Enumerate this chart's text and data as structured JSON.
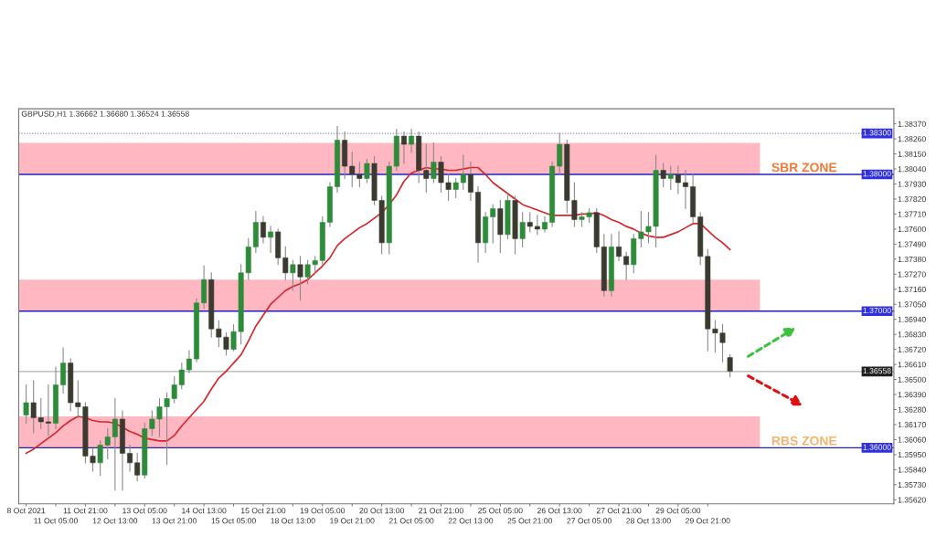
{
  "chart_data": {
    "type": "candlestick",
    "title": "GBPUSD,H1 1.36662 1.36680 1.36524 1.36558",
    "categories": [
      "8 Oct 2021",
      null,
      null,
      null,
      "11 Oct 05:00",
      null,
      null,
      null,
      "11 Oct 21:00",
      null,
      null,
      null,
      "12 Oct 13:00",
      null,
      null,
      null,
      "13 Oct 05:00",
      null,
      null,
      null,
      "13 Oct 21:00",
      null,
      null,
      null,
      "14 Oct 13:00",
      null,
      null,
      null,
      "15 Oct 05:00",
      null,
      null,
      null,
      "15 Oct 21:00",
      null,
      null,
      null,
      "18 Oct 13:00",
      null,
      null,
      null,
      "19 Oct 05:00",
      null,
      null,
      null,
      "19 Oct 21:00",
      null,
      null,
      null,
      "20 Oct 13:00",
      null,
      null,
      null,
      "21 Oct 05:00",
      null,
      null,
      null,
      "21 Oct 21:00",
      null,
      null,
      null,
      "22 Oct 13:00",
      null,
      null,
      null,
      "25 Oct 05:00",
      null,
      null,
      null,
      "25 Oct 21:00",
      null,
      null,
      null,
      "26 Oct 13:00",
      null,
      null,
      null,
      "27 Oct 05:00",
      null,
      null,
      null,
      "27 Oct 21:00",
      null,
      null,
      null,
      "28 Oct 13:00",
      null,
      null,
      null,
      "29 Oct 05:00",
      null,
      null,
      null,
      "29 Oct 21:00",
      null,
      null,
      null
    ],
    "series": [
      {
        "type": "candlestick",
        "colors": [
          "#2e8b3a",
          "#3a3a30",
          "#3a3a30",
          "#3a3a30",
          "#2e8b3a",
          "#2e8b3a",
          "#3a3a30",
          "#3a3a30",
          "#3a3a30",
          "#3a3a30",
          "#2e8b3a",
          "#2e8b3a",
          "#2e8b3a",
          "#3a3a30",
          "#3a3a30",
          "#3a3a30",
          "#2e8b3a",
          "#2e8b3a",
          "#2e8b3a",
          "#2e8b3a",
          "#2e8b3a",
          "#2e8b3a",
          "#2e8b3a",
          "#2e8b3a",
          "#2e8b3a",
          "#3a3a30",
          "#3a3a30",
          "#3a3a30",
          "#2e8b3a",
          "#2e8b3a",
          "#2e8b3a",
          "#2e8b3a",
          "#3a3a30",
          "#2e8b3a",
          "#3a3a30",
          "#3a3a30",
          "#2e8b3a",
          "#3a3a30",
          "#2e8b3a",
          "#2e8b3a",
          "#2e8b3a",
          "#2e8b3a",
          "#2e8b3a",
          "#3a3a30",
          "#3a3a30",
          "#3a3a30",
          "#2e8b3a",
          "#3a3a30",
          "#3a3a30",
          "#2e8b3a",
          "#2e8b3a",
          "#3a3a30",
          "#2e8b3a",
          "#3a3a30",
          "#3a3a30",
          "#2e8b3a",
          "#3a3a30",
          "#3a3a30",
          "#2e8b3a",
          "#2e8b3a",
          "#3a3a30",
          "#3a3a30",
          "#2e8b3a",
          "#2e8b3a",
          "#3a3a30",
          "#2e8b3a",
          "#3a3a30",
          "#2e8b3a",
          "#3a3a30",
          "#3a3a30",
          "#2e8b3a",
          "#2e8b3a",
          "#2e8b3a",
          "#3a3a30",
          "#3a3a30",
          "#2e8b3a",
          "#2e8b3a",
          "#3a3a30",
          "#3a3a30",
          "#2e8b3a",
          "#3a3a30",
          "#3a3a30",
          "#2e8b3a",
          "#2e8b3a",
          "#2e8b3a",
          "#2e8b3a",
          "#3a3a30",
          "#2e8b3a",
          "#3a3a30",
          "#3a3a30",
          "#3a3a30",
          "#3a3a30",
          "#3a3a30",
          "#3a3a30",
          "#3a3a30",
          "#3a3a30"
        ],
        "ohlc": [
          [
            1.3624,
            1.3646,
            1.3618,
            1.3633
          ],
          [
            1.3633,
            1.3649,
            1.3611,
            1.3622
          ],
          [
            1.3622,
            1.3636,
            1.3614,
            1.3619
          ],
          [
            1.3619,
            1.3646,
            1.3609,
            1.3618
          ],
          [
            1.3618,
            1.3659,
            1.3614,
            1.3646
          ],
          [
            1.3646,
            1.3673,
            1.364,
            1.3662
          ],
          [
            1.3662,
            1.3665,
            1.3627,
            1.3633
          ],
          [
            1.3633,
            1.3649,
            1.3622,
            1.363
          ],
          [
            1.363,
            1.3633,
            1.3589,
            1.3594
          ],
          [
            1.3594,
            1.3599,
            1.3583,
            1.3589
          ],
          [
            1.3589,
            1.3605,
            1.358,
            1.3602
          ],
          [
            1.3602,
            1.3614,
            1.3592,
            1.3608
          ],
          [
            1.3608,
            1.3636,
            1.3569,
            1.3621
          ],
          [
            1.3621,
            1.3627,
            1.3569,
            1.3596
          ],
          [
            1.3596,
            1.3602,
            1.3583,
            1.3589
          ],
          [
            1.3589,
            1.3596,
            1.3576,
            1.358
          ],
          [
            1.358,
            1.3618,
            1.3578,
            1.3614
          ],
          [
            1.3614,
            1.3627,
            1.3609,
            1.3621
          ],
          [
            1.3621,
            1.3636,
            1.3608,
            1.363
          ],
          [
            1.363,
            1.364,
            1.3588,
            1.3636
          ],
          [
            1.3636,
            1.3652,
            1.3633,
            1.3646
          ],
          [
            1.3646,
            1.3662,
            1.3643,
            1.3657
          ],
          [
            1.3657,
            1.3671,
            1.3655,
            1.3665
          ],
          [
            1.3665,
            1.3709,
            1.3663,
            1.3706
          ],
          [
            1.3706,
            1.3733,
            1.3702,
            1.3723
          ],
          [
            1.3723,
            1.3728,
            1.3681,
            1.3687
          ],
          [
            1.3687,
            1.3693,
            1.3674,
            1.3681
          ],
          [
            1.3681,
            1.3684,
            1.3668,
            1.3672
          ],
          [
            1.3672,
            1.369,
            1.3671,
            1.3685
          ],
          [
            1.3685,
            1.3734,
            1.3676,
            1.3728
          ],
          [
            1.3728,
            1.3753,
            1.3723,
            1.3747
          ],
          [
            1.3747,
            1.3773,
            1.3743,
            1.3765
          ],
          [
            1.3765,
            1.3769,
            1.375,
            1.3754
          ],
          [
            1.3754,
            1.3762,
            1.3743,
            1.3758
          ],
          [
            1.3758,
            1.376,
            1.3734,
            1.3739
          ],
          [
            1.3739,
            1.3747,
            1.3723,
            1.3728
          ],
          [
            1.3728,
            1.3737,
            1.3715,
            1.3734
          ],
          [
            1.3734,
            1.374,
            1.3708,
            1.3725
          ],
          [
            1.3725,
            1.3737,
            1.372,
            1.3734
          ],
          [
            1.3734,
            1.374,
            1.3728,
            1.3737
          ],
          [
            1.3737,
            1.3769,
            1.3734,
            1.3765
          ],
          [
            1.3765,
            1.3794,
            1.3762,
            1.3791
          ],
          [
            1.3791,
            1.3835,
            1.3787,
            1.3825
          ],
          [
            1.3825,
            1.3831,
            1.3797,
            1.3806
          ],
          [
            1.3806,
            1.3816,
            1.3791,
            1.38
          ],
          [
            1.38,
            1.3809,
            1.3791,
            1.3797
          ],
          [
            1.3797,
            1.3811,
            1.3794,
            1.3808
          ],
          [
            1.3808,
            1.3813,
            1.3778,
            1.3781
          ],
          [
            1.3781,
            1.3784,
            1.3742,
            1.375
          ],
          [
            1.375,
            1.3809,
            1.3742,
            1.3806
          ],
          [
            1.3806,
            1.3833,
            1.3803,
            1.3828
          ],
          [
            1.3828,
            1.3831,
            1.3808,
            1.3822
          ],
          [
            1.3822,
            1.3833,
            1.3816,
            1.3828
          ],
          [
            1.3828,
            1.3831,
            1.3794,
            1.3803
          ],
          [
            1.3803,
            1.3822,
            1.3787,
            1.3797
          ],
          [
            1.3797,
            1.3823,
            1.3794,
            1.3809
          ],
          [
            1.3809,
            1.3813,
            1.3787,
            1.3794
          ],
          [
            1.3794,
            1.38,
            1.3781,
            1.3789
          ],
          [
            1.3789,
            1.3797,
            1.3783,
            1.3794
          ],
          [
            1.3794,
            1.3814,
            1.3789,
            1.38
          ],
          [
            1.38,
            1.3809,
            1.3781,
            1.3787
          ],
          [
            1.3787,
            1.3791,
            1.3736,
            1.375
          ],
          [
            1.375,
            1.3772,
            1.3743,
            1.3769
          ],
          [
            1.3769,
            1.3778,
            1.375,
            1.3775
          ],
          [
            1.3775,
            1.3781,
            1.3743,
            1.3756
          ],
          [
            1.3756,
            1.3786,
            1.3753,
            1.3781
          ],
          [
            1.3781,
            1.3784,
            1.3742,
            1.3753
          ],
          [
            1.3753,
            1.3772,
            1.3747,
            1.3765
          ],
          [
            1.3765,
            1.3772,
            1.3758,
            1.3762
          ],
          [
            1.3762,
            1.377,
            1.3756,
            1.376
          ],
          [
            1.376,
            1.3769,
            1.3758,
            1.3765
          ],
          [
            1.3765,
            1.3809,
            1.3762,
            1.3806
          ],
          [
            1.3806,
            1.383,
            1.38,
            1.3822
          ],
          [
            1.3822,
            1.3825,
            1.3772,
            1.3781
          ],
          [
            1.3781,
            1.3794,
            1.3762,
            1.3767
          ],
          [
            1.3767,
            1.3772,
            1.3762,
            1.3769
          ],
          [
            1.3769,
            1.3775,
            1.3765,
            1.3772
          ],
          [
            1.3772,
            1.3775,
            1.3743,
            1.3747
          ],
          [
            1.3747,
            1.3756,
            1.3711,
            1.3715
          ],
          [
            1.3715,
            1.3756,
            1.3711,
            1.3747
          ],
          [
            1.3747,
            1.3758,
            1.3737,
            1.374
          ],
          [
            1.374,
            1.3743,
            1.3723,
            1.3734
          ],
          [
            1.3734,
            1.3756,
            1.3728,
            1.3753
          ],
          [
            1.3753,
            1.3773,
            1.3747,
            1.3758
          ],
          [
            1.3758,
            1.3772,
            1.375,
            1.3762
          ],
          [
            1.3762,
            1.3814,
            1.3747,
            1.3803
          ],
          [
            1.3803,
            1.3808,
            1.3791,
            1.3797
          ],
          [
            1.3797,
            1.3806,
            1.3789,
            1.38
          ],
          [
            1.38,
            1.3806,
            1.3786,
            1.3794
          ],
          [
            1.3794,
            1.3803,
            1.3775,
            1.3791
          ],
          [
            1.3791,
            1.38,
            1.3765,
            1.3769
          ],
          [
            1.3769,
            1.3772,
            1.3734,
            1.374
          ],
          [
            1.374,
            1.3745,
            1.3671,
            1.3687
          ],
          [
            1.3687,
            1.3693,
            1.367,
            1.3684
          ],
          [
            1.3684,
            1.369,
            1.3663,
            1.3677
          ],
          [
            1.3666,
            1.3668,
            1.3652,
            1.3656
          ]
        ]
      },
      {
        "type": "line",
        "color": "#d7262b",
        "values": [
          1.3596,
          1.3599,
          1.3603,
          1.3607,
          1.3611,
          1.3616,
          1.362,
          1.3623,
          1.3622,
          1.362,
          1.3619,
          1.3619,
          1.3618,
          1.3615,
          1.3612,
          1.361,
          1.3607,
          1.3606,
          1.3605,
          1.3605,
          1.3609,
          1.3616,
          1.3622,
          1.3628,
          1.3634,
          1.3643,
          1.3651,
          1.3656,
          1.3662,
          1.3668,
          1.3678,
          1.3689,
          1.3697,
          1.3705,
          1.371,
          1.3715,
          1.3718,
          1.372,
          1.3723,
          1.3728,
          1.3733,
          1.3739,
          1.3748,
          1.3753,
          1.3757,
          1.3761,
          1.3764,
          1.3768,
          1.3772,
          1.3778,
          1.3785,
          1.3795,
          1.3801,
          1.3803,
          1.3805,
          1.3804,
          1.3804,
          1.3803,
          1.3803,
          1.3804,
          1.3805,
          1.3805,
          1.38,
          1.3794,
          1.379,
          1.3786,
          1.3782,
          1.3778,
          1.3776,
          1.3774,
          1.3772,
          1.377,
          1.377,
          1.377,
          1.377,
          1.3771,
          1.3771,
          1.3772,
          1.377,
          1.3767,
          1.3765,
          1.3762,
          1.376,
          1.3757,
          1.3755,
          1.3754,
          1.3754,
          1.3756,
          1.3758,
          1.3761,
          1.3764,
          1.3764,
          1.3759,
          1.3754,
          1.375,
          1.3745
        ]
      }
    ],
    "ylim": [
      1.3559,
      1.3848
    ],
    "yticks": [
      {
        "value": 1.3837,
        "label": "1.38370"
      },
      {
        "value": 1.3826,
        "label": "1.38260"
      },
      {
        "value": 1.3815,
        "label": "1.38150"
      },
      {
        "value": 1.3804,
        "label": "1.38040"
      },
      {
        "value": 1.3793,
        "label": "1.37930"
      },
      {
        "value": 1.3782,
        "label": "1.37820"
      },
      {
        "value": 1.3771,
        "label": "1.37710"
      },
      {
        "value": 1.376,
        "label": "1.37600"
      },
      {
        "value": 1.3749,
        "label": "1.37490"
      },
      {
        "value": 1.3738,
        "label": "1.37380"
      },
      {
        "value": 1.3727,
        "label": "1.37270"
      },
      {
        "value": 1.3716,
        "label": "1.37160"
      },
      {
        "value": 1.3705,
        "label": "1.37050"
      },
      {
        "value": 1.3694,
        "label": "1.36940"
      },
      {
        "value": 1.3683,
        "label": "1.36830"
      },
      {
        "value": 1.3672,
        "label": "1.36720"
      },
      {
        "value": 1.3661,
        "label": "1.36610"
      },
      {
        "value": 1.365,
        "label": "1.36500"
      },
      {
        "value": 1.3639,
        "label": "1.36390"
      },
      {
        "value": 1.3628,
        "label": "1.36280"
      },
      {
        "value": 1.3617,
        "label": "1.36170"
      },
      {
        "value": 1.3606,
        "label": "1.36060"
      },
      {
        "value": 1.3595,
        "label": "1.35950"
      },
      {
        "value": 1.3584,
        "label": "1.35840"
      },
      {
        "value": 1.3573,
        "label": "1.35730"
      },
      {
        "value": 1.3562,
        "label": "1.35620"
      }
    ],
    "bands": [
      {
        "axis": "y",
        "from": 1.38,
        "to": 1.3823,
        "label": "SBR ZONE",
        "color": "#ffb7c2"
      },
      {
        "axis": "y",
        "from": 1.37,
        "to": 1.3723,
        "label": null,
        "color": "#ffb7c2"
      },
      {
        "axis": "y",
        "from": 1.36,
        "to": 1.3623,
        "label": "RBS ZONE",
        "color": "#ffb7c2"
      }
    ],
    "ref_lines": [
      {
        "axis": "y",
        "value": 1.383,
        "label": "1.38300",
        "color": "#8080c0",
        "line_style": "dotted"
      },
      {
        "axis": "y",
        "value": 1.38,
        "label": "1.38000",
        "color": "#2020c0",
        "line_style": "solid"
      },
      {
        "axis": "y",
        "value": 1.37,
        "label": "1.37000",
        "color": "#2020c0",
        "line_style": "solid"
      },
      {
        "axis": "y",
        "value": 1.36558,
        "label": "1.36558",
        "color": "#b0b0b0",
        "line_style": "solid"
      },
      {
        "axis": "y",
        "value": 1.36,
        "label": "1.36000",
        "color": "#2020c0",
        "line_style": "solid"
      }
    ],
    "grid": false,
    "legend": false
  }
}
